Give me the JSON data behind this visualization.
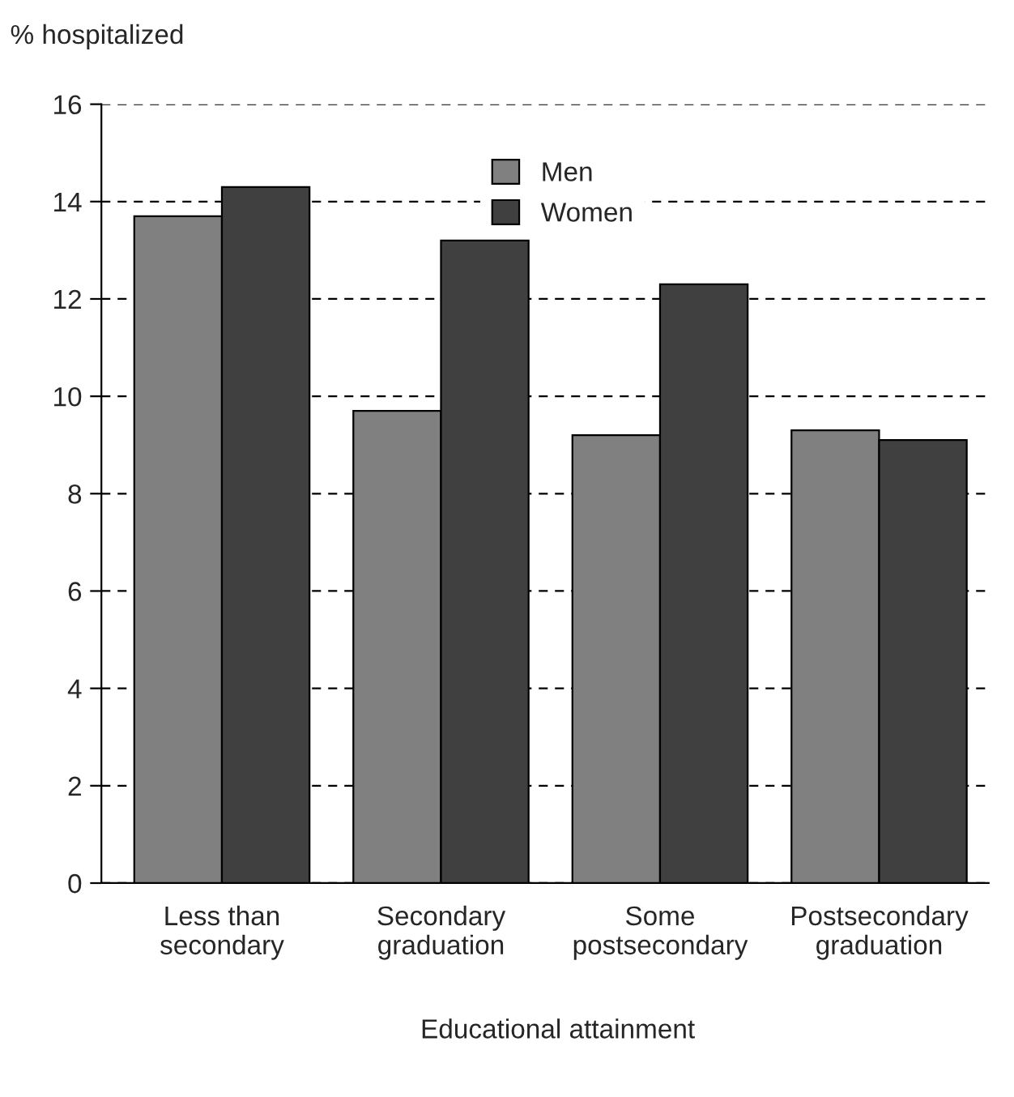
{
  "chart_data": {
    "type": "bar",
    "ylabel": "% hospitalized",
    "xlabel": "Educational attainment",
    "categories": [
      "Less than\nsecondary",
      "Secondary\ngraduation",
      "Some\npostsecondary",
      "Postsecondary\ngraduation"
    ],
    "series": [
      {
        "name": "Men",
        "color": "#808080",
        "values": [
          13.7,
          9.7,
          9.2,
          9.3
        ]
      },
      {
        "name": "Women",
        "color": "#404040",
        "values": [
          14.3,
          13.2,
          12.3,
          9.1
        ]
      }
    ],
    "ylim": [
      0,
      16
    ],
    "yticks": [
      0,
      2,
      4,
      6,
      8,
      10,
      12,
      14,
      16
    ],
    "grid": "y",
    "legend": "top"
  }
}
